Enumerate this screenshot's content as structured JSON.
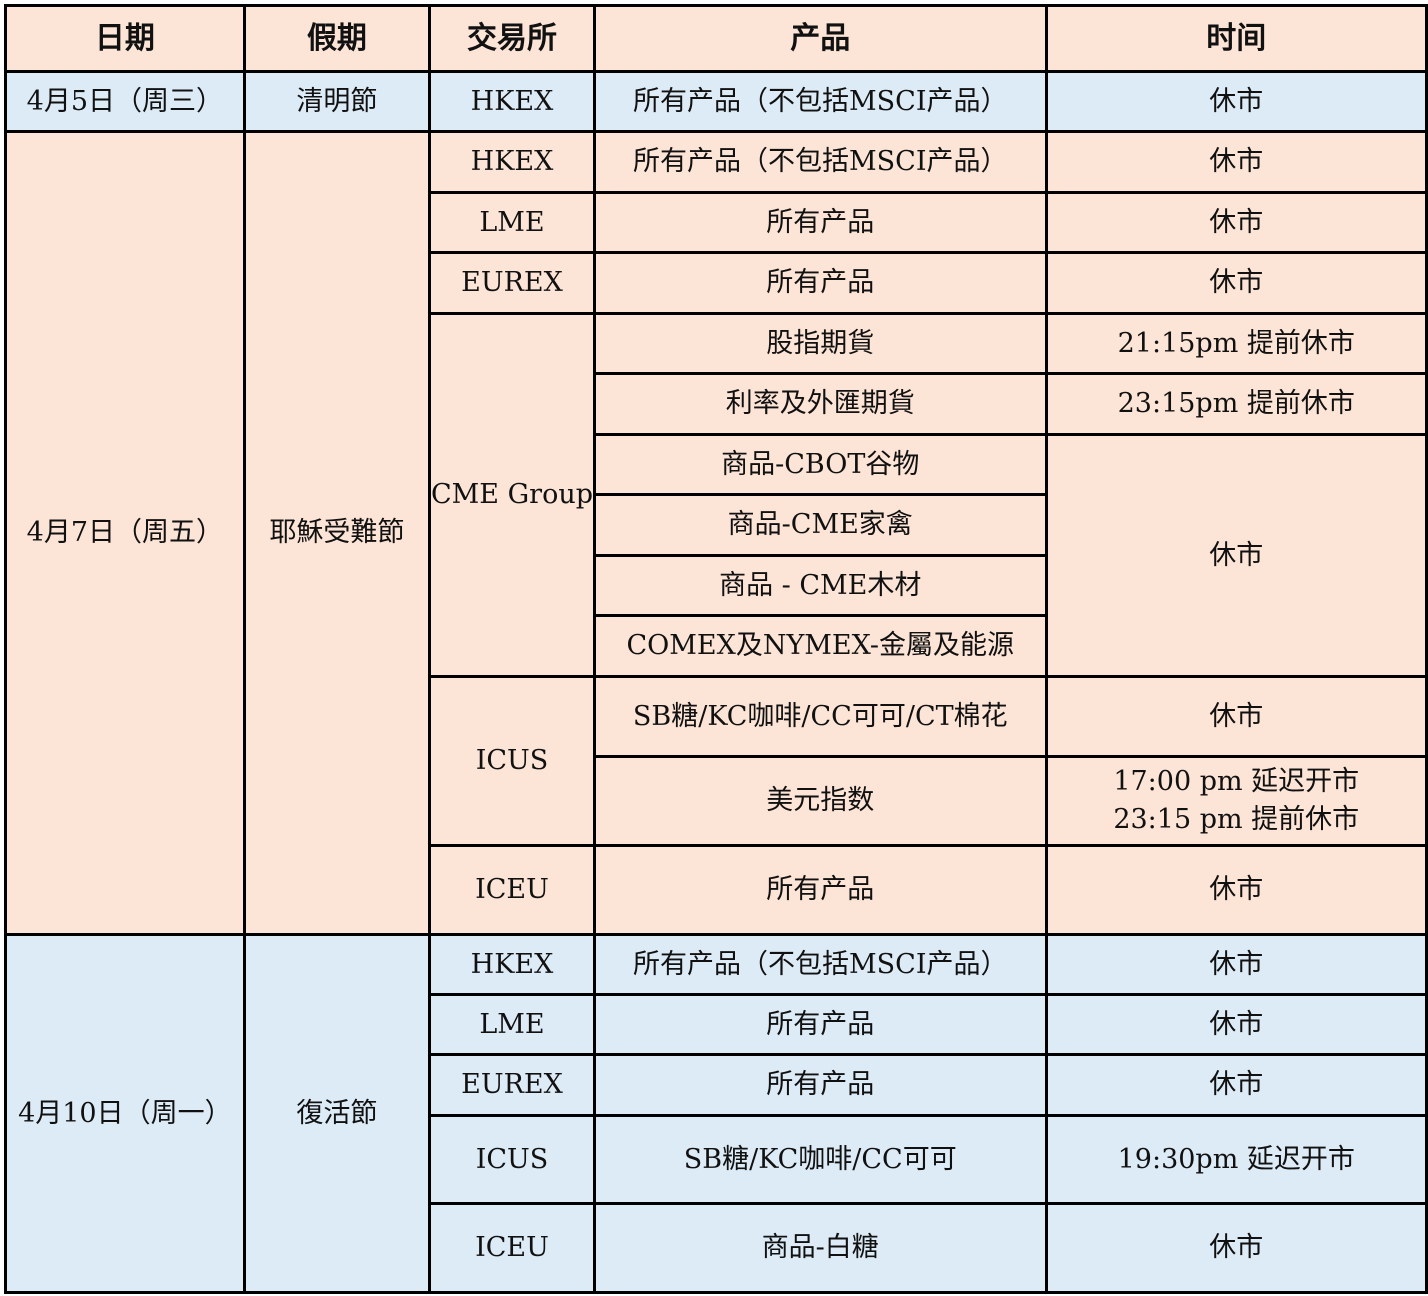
{
  "colors": {
    "header_bg": "#FCE4D6",
    "peach_bg": "#FCE4D6",
    "blue_bg": "#DDEBF7",
    "border": "#000000"
  },
  "headers": [
    "日期",
    "假期",
    "交易所",
    "产品",
    "时间"
  ],
  "groups": [
    {
      "color": "blue",
      "date": "4月5日（周三）",
      "holiday": "清明節",
      "exchanges": [
        {
          "name": "HKEX",
          "products": [
            {
              "name": "所有产品（不包括MSCI产品）",
              "time": "休市"
            }
          ]
        }
      ]
    },
    {
      "color": "peach",
      "date": "4月7日（周五）",
      "holiday": "耶穌受難節",
      "exchanges": [
        {
          "name": "HKEX",
          "products": [
            {
              "name": "所有产品（不包括MSCI产品）",
              "time": "休市"
            }
          ]
        },
        {
          "name": "LME",
          "products": [
            {
              "name": "所有产品",
              "time": "休市"
            }
          ]
        },
        {
          "name": "EUREX",
          "products": [
            {
              "name": "所有产品",
              "time": "休市"
            }
          ]
        },
        {
          "name": "CME Group",
          "products": [
            {
              "name": "股指期貨",
              "time": "21:15pm 提前休市"
            },
            {
              "name": "利率及外匯期貨",
              "time": "23:15pm 提前休市"
            },
            {
              "name": "商品-CBOT谷物",
              "time": "休市",
              "time_span": 4
            },
            {
              "name": "商品-CME家禽"
            },
            {
              "name": "商品 - CME木材"
            },
            {
              "name": "COMEX及NYMEX-金屬及能源"
            }
          ]
        },
        {
          "name": "ICUS",
          "products": [
            {
              "name": "SB糖/KC咖啡/CC可可/CT棉花",
              "time": "休市"
            },
            {
              "name": "美元指数",
              "time": "17:00 pm 延迟开市",
              "time2": "23:15 pm 提前休市"
            }
          ]
        },
        {
          "name": "ICEU",
          "products": [
            {
              "name": "所有产品",
              "time": "休市"
            }
          ]
        }
      ]
    },
    {
      "color": "blue",
      "date": "4月10日（周一）",
      "holiday": "復活節",
      "exchanges": [
        {
          "name": "HKEX",
          "products": [
            {
              "name": "所有产品（不包括MSCI产品）",
              "time": "休市"
            }
          ]
        },
        {
          "name": "LME",
          "products": [
            {
              "name": "所有产品",
              "time": "休市"
            }
          ]
        },
        {
          "name": "EUREX",
          "products": [
            {
              "name": "所有产品",
              "time": "休市"
            }
          ]
        },
        {
          "name": "ICUS",
          "products": [
            {
              "name": "SB糖/KC咖啡/CC可可",
              "time": "19:30pm 延迟开市"
            }
          ]
        },
        {
          "name": "ICEU",
          "products": [
            {
              "name": "商品-白糖",
              "time": "休市"
            }
          ]
        }
      ]
    }
  ]
}
